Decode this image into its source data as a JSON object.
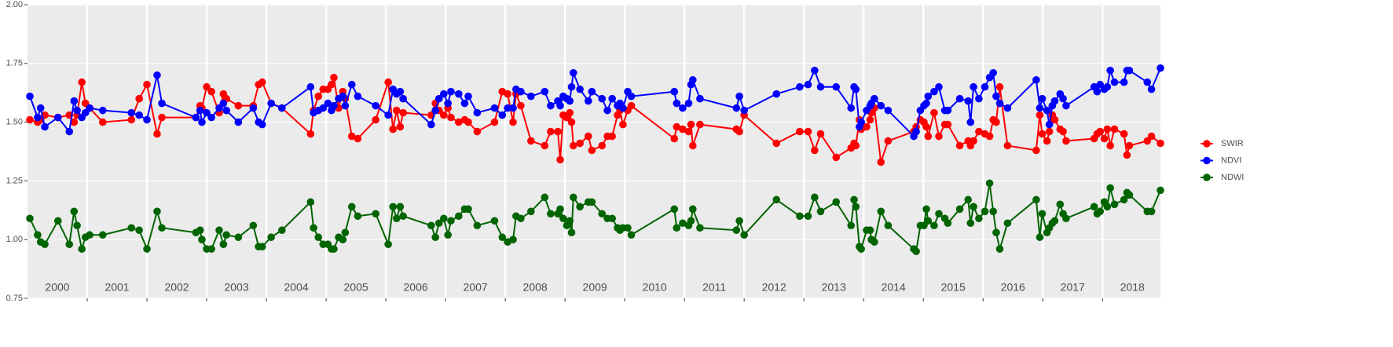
{
  "chart_data": {
    "type": "line",
    "xlim": [
      2000,
      2018.97
    ],
    "ylim": [
      0.75,
      2.0
    ],
    "yticks": [
      {
        "value": 0.75,
        "label": "0.75"
      },
      {
        "value": 1.0,
        "label": "1.00"
      },
      {
        "value": 1.25,
        "label": "1.25"
      },
      {
        "value": 1.5,
        "label": "1.50"
      },
      {
        "value": 1.75,
        "label": "1.75"
      },
      {
        "value": 2.0,
        "label": "2.00"
      }
    ],
    "xticks": [
      {
        "value": 2000.5,
        "label": "2000"
      },
      {
        "value": 2001.5,
        "label": "2001"
      },
      {
        "value": 2002.5,
        "label": "2002"
      },
      {
        "value": 2003.5,
        "label": "2003"
      },
      {
        "value": 2004.5,
        "label": "2004"
      },
      {
        "value": 2005.5,
        "label": "2005"
      },
      {
        "value": 2006.5,
        "label": "2006"
      },
      {
        "value": 2007.5,
        "label": "2007"
      },
      {
        "value": 2008.5,
        "label": "2008"
      },
      {
        "value": 2009.5,
        "label": "2009"
      },
      {
        "value": 2010.5,
        "label": "2010"
      },
      {
        "value": 2011.5,
        "label": "2011"
      },
      {
        "value": 2012.5,
        "label": "2012"
      },
      {
        "value": 2013.5,
        "label": "2013"
      },
      {
        "value": 2014.5,
        "label": "2014"
      },
      {
        "value": 2015.5,
        "label": "2015"
      },
      {
        "value": 2016.5,
        "label": "2016"
      },
      {
        "value": 2017.5,
        "label": "2017"
      },
      {
        "value": 2018.5,
        "label": "2018"
      }
    ],
    "year_boundaries": [
      2001,
      2002,
      2003,
      2004,
      2005,
      2006,
      2007,
      2008,
      2009,
      2010,
      2011,
      2012,
      2013,
      2014,
      2015,
      2016,
      2017,
      2018
    ],
    "grid": true,
    "legend": "right",
    "x": [
      2000.04,
      2000.17,
      2000.22,
      2000.29,
      2000.51,
      2000.7,
      2000.78,
      2000.83,
      2000.91,
      2000.97,
      2001.04,
      2001.26,
      2001.74,
      2001.87,
      2002.0,
      2002.17,
      2002.25,
      2002.82,
      2002.89,
      2002.92,
      2003.0,
      2003.08,
      2003.21,
      2003.28,
      2003.33,
      2003.53,
      2003.78,
      2003.87,
      2003.93,
      2004.08,
      2004.26,
      2004.74,
      2004.79,
      2004.87,
      2004.95,
      2005.03,
      2005.09,
      2005.13,
      2005.21,
      2005.28,
      2005.32,
      2005.43,
      2005.53,
      2005.83,
      2006.04,
      2006.12,
      2006.18,
      2006.24,
      2006.29,
      2006.76,
      2006.83,
      2006.89,
      2006.97,
      2007.04,
      2007.09,
      2007.22,
      2007.32,
      2007.38,
      2007.53,
      2007.82,
      2007.95,
      2008.04,
      2008.13,
      2008.18,
      2008.26,
      2008.43,
      2008.66,
      2008.76,
      2008.88,
      2008.92,
      2008.97,
      2009.03,
      2009.08,
      2009.11,
      2009.14,
      2009.25,
      2009.39,
      2009.45,
      2009.62,
      2009.71,
      2009.79,
      2009.88,
      2009.92,
      2009.97,
      2010.05,
      2010.11,
      2010.83,
      2010.87,
      2010.97,
      2011.07,
      2011.11,
      2011.14,
      2011.26,
      2011.87,
      2011.92,
      2012.0,
      2012.54,
      2012.93,
      2013.07,
      2013.18,
      2013.28,
      2013.54,
      2013.79,
      2013.84,
      2013.87,
      2013.93,
      2013.96,
      2014.05,
      2014.11,
      2014.13,
      2014.18,
      2014.29,
      2014.41,
      2014.84,
      2014.88,
      2014.95,
      2015.01,
      2015.05,
      2015.08,
      2015.18,
      2015.26,
      2015.36,
      2015.41,
      2015.61,
      2015.75,
      2015.79,
      2015.84,
      2015.93,
      2016.03,
      2016.11,
      2016.17,
      2016.22,
      2016.28,
      2016.41,
      2016.89,
      2016.95,
      2016.99,
      2017.07,
      2017.11,
      2017.16,
      2017.2,
      2017.29,
      2017.34,
      2017.39,
      2017.86,
      2017.91,
      2017.96,
      2018.03,
      2018.08,
      2018.13,
      2018.2,
      2018.36,
      2018.41,
      2018.45,
      2018.75,
      2018.82,
      2018.97
    ],
    "series": [
      {
        "name": "SWIR",
        "color": "#ff0000",
        "values": [
          1.51,
          1.5,
          1.51,
          1.53,
          1.52,
          1.53,
          1.5,
          1.53,
          1.67,
          1.58,
          1.56,
          1.5,
          1.51,
          1.6,
          1.66,
          1.45,
          1.52,
          1.52,
          1.57,
          1.56,
          1.65,
          1.63,
          1.54,
          1.62,
          1.6,
          1.57,
          1.57,
          1.66,
          1.67,
          1.58,
          1.56,
          1.45,
          1.55,
          1.61,
          1.64,
          1.64,
          1.66,
          1.69,
          1.56,
          1.63,
          1.6,
          1.44,
          1.43,
          1.51,
          1.67,
          1.47,
          1.55,
          1.48,
          1.54,
          1.53,
          1.58,
          1.55,
          1.53,
          1.56,
          1.52,
          1.5,
          1.51,
          1.5,
          1.46,
          1.5,
          1.63,
          1.62,
          1.5,
          1.62,
          1.57,
          1.42,
          1.4,
          1.46,
          1.46,
          1.34,
          1.53,
          1.52,
          1.54,
          1.5,
          1.4,
          1.41,
          1.44,
          1.38,
          1.4,
          1.44,
          1.44,
          1.53,
          1.55,
          1.49,
          1.55,
          1.57,
          1.43,
          1.48,
          1.47,
          1.46,
          1.49,
          1.4,
          1.49,
          1.47,
          1.46,
          1.53,
          1.41,
          1.46,
          1.46,
          1.38,
          1.45,
          1.35,
          1.39,
          1.41,
          1.4,
          1.51,
          1.47,
          1.48,
          1.51,
          1.54,
          1.56,
          1.33,
          1.42,
          1.46,
          1.48,
          1.51,
          1.5,
          1.48,
          1.44,
          1.54,
          1.44,
          1.49,
          1.49,
          1.4,
          1.42,
          1.4,
          1.42,
          1.46,
          1.45,
          1.44,
          1.51,
          1.5,
          1.65,
          1.4,
          1.38,
          1.53,
          1.45,
          1.42,
          1.46,
          1.53,
          1.51,
          1.47,
          1.46,
          1.42,
          1.43,
          1.45,
          1.46,
          1.43,
          1.47,
          1.4,
          1.47,
          1.45,
          1.36,
          1.4,
          1.42,
          1.44,
          1.41
        ]
      },
      {
        "name": "NDVI",
        "color": "#0000ff",
        "values": [
          1.61,
          1.52,
          1.56,
          1.48,
          1.52,
          1.46,
          1.59,
          1.55,
          1.52,
          1.54,
          1.56,
          1.55,
          1.54,
          1.53,
          1.51,
          1.7,
          1.58,
          1.52,
          1.55,
          1.5,
          1.54,
          1.52,
          1.56,
          1.58,
          1.55,
          1.5,
          1.56,
          1.5,
          1.49,
          1.58,
          1.56,
          1.65,
          1.54,
          1.55,
          1.56,
          1.58,
          1.55,
          1.57,
          1.6,
          1.61,
          1.57,
          1.66,
          1.61,
          1.57,
          1.53,
          1.64,
          1.62,
          1.63,
          1.6,
          1.49,
          1.55,
          1.6,
          1.62,
          1.58,
          1.63,
          1.62,
          1.58,
          1.61,
          1.54,
          1.56,
          1.53,
          1.56,
          1.56,
          1.64,
          1.63,
          1.61,
          1.63,
          1.57,
          1.59,
          1.57,
          1.61,
          1.6,
          1.59,
          1.65,
          1.71,
          1.64,
          1.59,
          1.63,
          1.6,
          1.55,
          1.6,
          1.57,
          1.58,
          1.56,
          1.63,
          1.61,
          1.63,
          1.58,
          1.56,
          1.58,
          1.66,
          1.68,
          1.6,
          1.56,
          1.61,
          1.55,
          1.62,
          1.65,
          1.66,
          1.72,
          1.65,
          1.65,
          1.56,
          1.65,
          1.64,
          1.48,
          1.5,
          1.55,
          1.57,
          1.58,
          1.6,
          1.57,
          1.55,
          1.44,
          1.46,
          1.55,
          1.57,
          1.58,
          1.61,
          1.63,
          1.65,
          1.55,
          1.55,
          1.6,
          1.59,
          1.5,
          1.65,
          1.6,
          1.65,
          1.69,
          1.71,
          1.61,
          1.58,
          1.56,
          1.68,
          1.56,
          1.6,
          1.55,
          1.49,
          1.57,
          1.59,
          1.62,
          1.6,
          1.57,
          1.65,
          1.63,
          1.66,
          1.64,
          1.65,
          1.72,
          1.67,
          1.67,
          1.72,
          1.72,
          1.67,
          1.64,
          1.73
        ]
      },
      {
        "name": "NDWI",
        "color": "#006400",
        "values": [
          1.09,
          1.02,
          0.99,
          0.98,
          1.08,
          0.98,
          1.12,
          1.06,
          0.96,
          1.01,
          1.02,
          1.02,
          1.05,
          1.04,
          0.96,
          1.12,
          1.05,
          1.03,
          1.04,
          1.0,
          0.96,
          0.96,
          1.04,
          0.98,
          1.02,
          1.01,
          1.06,
          0.97,
          0.97,
          1.01,
          1.04,
          1.16,
          1.05,
          1.01,
          0.98,
          0.98,
          0.96,
          0.96,
          1.01,
          1.0,
          1.03,
          1.14,
          1.1,
          1.11,
          0.98,
          1.14,
          1.09,
          1.14,
          1.1,
          1.06,
          1.01,
          1.07,
          1.09,
          1.02,
          1.08,
          1.1,
          1.13,
          1.13,
          1.06,
          1.08,
          1.01,
          0.99,
          1.0,
          1.1,
          1.09,
          1.12,
          1.18,
          1.11,
          1.11,
          1.13,
          1.09,
          1.06,
          1.08,
          1.03,
          1.18,
          1.14,
          1.16,
          1.16,
          1.11,
          1.09,
          1.09,
          1.05,
          1.04,
          1.05,
          1.05,
          1.02,
          1.13,
          1.05,
          1.07,
          1.06,
          1.08,
          1.13,
          1.05,
          1.04,
          1.08,
          1.02,
          1.17,
          1.1,
          1.1,
          1.18,
          1.12,
          1.16,
          1.06,
          1.17,
          1.14,
          0.97,
          0.96,
          1.04,
          1.04,
          1.0,
          0.99,
          1.12,
          1.06,
          0.96,
          0.95,
          1.06,
          1.06,
          1.13,
          1.08,
          1.06,
          1.11,
          1.09,
          1.07,
          1.13,
          1.17,
          1.07,
          1.14,
          1.09,
          1.12,
          1.24,
          1.12,
          1.03,
          0.96,
          1.07,
          1.17,
          1.01,
          1.11,
          1.03,
          1.05,
          1.07,
          1.08,
          1.15,
          1.11,
          1.09,
          1.14,
          1.11,
          1.12,
          1.16,
          1.14,
          1.22,
          1.15,
          1.17,
          1.2,
          1.19,
          1.12,
          1.12,
          1.21
        ]
      }
    ]
  }
}
